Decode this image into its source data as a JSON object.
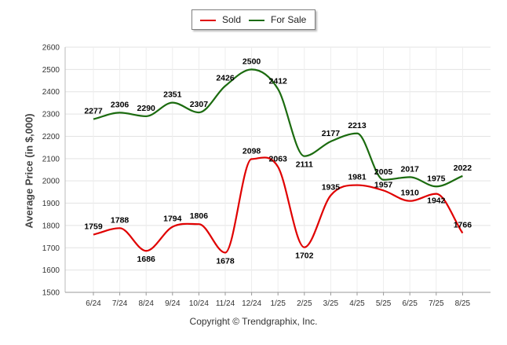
{
  "chart_data": {
    "type": "line",
    "title": "",
    "xlabel": "",
    "ylabel": "Average Price (in $,000)",
    "categories": [
      "6/24",
      "7/24",
      "8/24",
      "9/24",
      "10/24",
      "11/24",
      "12/24",
      "1/25",
      "2/25",
      "3/25",
      "4/25",
      "5/25",
      "6/25",
      "7/25",
      "8/25"
    ],
    "ylim": [
      1500,
      2600
    ],
    "yticks": [
      1500,
      1600,
      1700,
      1800,
      1900,
      2000,
      2100,
      2200,
      2300,
      2400,
      2500,
      2600
    ],
    "grid": true,
    "legend_position": "top-center",
    "series": [
      {
        "name": "Sold",
        "color": "#e00000",
        "values": [
          1759,
          1788,
          1686,
          1794,
          1806,
          1678,
          2098,
          2063,
          1702,
          1935,
          1981,
          1957,
          1910,
          1942,
          1766
        ]
      },
      {
        "name": "For Sale",
        "color": "#1b6b0f",
        "values": [
          2277,
          2306,
          2290,
          2351,
          2307,
          2426,
          2500,
          2412,
          2111,
          2177,
          2213,
          2005,
          2017,
          1975,
          2022
        ]
      }
    ]
  },
  "footer": {
    "copyright": "Copyright © Trendgraphix, Inc."
  }
}
